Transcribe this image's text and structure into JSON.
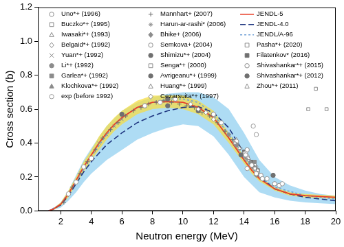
{
  "chart_data": {
    "type": "scatter",
    "x_label": "Neutron energy (MeV)",
    "y_label": "Cross section (b)",
    "xlim": [
      0.5,
      20
    ],
    "xticks": [
      2,
      4,
      6,
      8,
      10,
      12,
      14,
      16,
      18,
      20
    ],
    "ylim": [
      0,
      1.2
    ],
    "yticks": [
      {
        "value": 0,
        "label": "0.0"
      },
      0.2,
      0.4,
      0.6,
      0.8,
      {
        "value": 1,
        "label": "1.0"
      },
      1.2
    ],
    "grid": false,
    "legend": "top",
    "series": [
      {
        "name": "Uno*+ (1996)",
        "color": "#8c8c8c",
        "marker": "open-circle",
        "x": [
          14.1,
          14.5,
          14.8,
          15.2
        ],
        "values": [
          0.33,
          0.27,
          0.22,
          0.19
        ]
      },
      {
        "name": "Buczko*+ (1995)",
        "color": "#8c8c8c",
        "marker": "open-square",
        "x": [
          14.7
        ],
        "values": [
          0.25
        ]
      },
      {
        "name": "Iwasaki*+ (1993)",
        "color": "#8c8c8c",
        "marker": "open-triangle",
        "x": [
          13.4,
          13.7,
          14.3,
          14.9
        ],
        "values": [
          0.4,
          0.37,
          0.31,
          0.24
        ]
      },
      {
        "name": "Belgaid*+ (1992)",
        "color": "#8c8c8c",
        "marker": "open-diamond",
        "x": [
          14.5
        ],
        "values": [
          0.27
        ]
      },
      {
        "name": "Yuan*+ (1992)",
        "color": "#8c8c8c",
        "marker": "cross",
        "x": [
          4.5,
          5.0,
          5.5,
          6.0
        ],
        "values": [
          0.4,
          0.45,
          0.5,
          0.54
        ]
      },
      {
        "name": "Li*+ (1992)",
        "color": "#8c8c8c",
        "marker": "circle",
        "x": [
          13.5,
          14.6
        ],
        "values": [
          0.39,
          0.26
        ]
      },
      {
        "name": "Garlea*+ (1992)",
        "color": "#8c8c8c",
        "marker": "square",
        "x": [
          14.7
        ],
        "values": [
          0.29
        ]
      },
      {
        "name": "Klochkova*+ (1992)",
        "color": "#8c8c8c",
        "marker": "triangle",
        "x": [
          14.4
        ],
        "values": [
          0.29
        ]
      },
      {
        "name": "exp (before 1992)",
        "color": "#9a9a9a",
        "marker": "open-circle",
        "x": [
          2.5,
          3.0,
          3.5,
          4.0,
          7.5,
          8.5,
          9.5,
          12.5,
          13.5,
          14.1,
          14.2,
          14.6,
          14.8,
          15.5,
          16.5
        ],
        "values": [
          0.1,
          0.17,
          0.26,
          0.31,
          0.62,
          0.64,
          0.66,
          0.52,
          0.41,
          0.34,
          0.25,
          0.5,
          0.45,
          0.19,
          0.16
        ]
      },
      {
        "name": "Mannhart+ (2007)",
        "color": "#6e6e6e",
        "marker": "plus",
        "x": [
          2.2,
          2.75,
          3.25,
          3.75,
          4.25,
          4.75,
          5.25,
          5.75,
          6.25,
          6.75,
          7.25,
          7.75,
          8.25,
          8.75,
          9.25,
          9.75,
          10.25,
          10.75,
          11.25,
          11.75,
          12.25,
          12.75,
          13.25,
          13.75
        ],
        "values": [
          0.05,
          0.14,
          0.22,
          0.29,
          0.36,
          0.43,
          0.48,
          0.52,
          0.56,
          0.59,
          0.61,
          0.63,
          0.64,
          0.65,
          0.64,
          0.63,
          0.62,
          0.61,
          0.58,
          0.56,
          0.52,
          0.47,
          0.42,
          0.37
        ]
      },
      {
        "name": "Harun-ar-rashi* (2006)",
        "color": "#8c8c8c",
        "marker": "star",
        "x": [
          14.1,
          14.8
        ],
        "values": [
          0.31,
          0.26
        ]
      },
      {
        "name": "Bhike+ (2006)",
        "color": "#8c8c8c",
        "marker": "diamond",
        "x": [
          13.0,
          14.8
        ],
        "values": [
          0.45,
          0.21
        ]
      },
      {
        "name": "Semkova+ (2004)",
        "color": "#8c8c8c",
        "marker": "open-circle",
        "x": [
          14.2,
          15.1,
          16.0
        ],
        "values": [
          0.36,
          0.21,
          0.16
        ]
      },
      {
        "name": "Shimizu*+ (2004)",
        "color": "#707070",
        "marker": "circle",
        "x": [
          13.8,
          14.5
        ],
        "values": [
          0.33,
          0.28
        ]
      },
      {
        "name": "Senga*+ (2000)",
        "color": "#8c8c8c",
        "marker": "open-square",
        "x": [
          13.4,
          14.0,
          14.7
        ],
        "values": [
          0.41,
          0.34,
          0.27
        ]
      },
      {
        "name": "Avrigeanu*+ (1999)",
        "color": "#707070",
        "marker": "circle",
        "x": [
          6.0,
          7.5,
          9.0
        ],
        "values": [
          0.57,
          0.62,
          0.66
        ]
      },
      {
        "name": "Huang*+ (1999)",
        "color": "#8c8c8c",
        "marker": "open-triangle",
        "x": [
          14.3,
          14.9
        ],
        "values": [
          0.3,
          0.23
        ]
      },
      {
        "name": "Cezarsuita*+ (1997)",
        "color": "#8c8c8c",
        "marker": "open-diamond",
        "x": [
          10.5,
          11.0,
          11.5,
          12.0
        ],
        "values": [
          0.63,
          0.6,
          0.58,
          0.54
        ]
      },
      {
        "name": "JENDL-5",
        "type": "line",
        "color": "#e8402a",
        "line_style": "solid",
        "x": [
          1.2,
          1.5,
          2,
          2.5,
          3,
          3.5,
          4,
          4.5,
          5,
          5.5,
          6,
          7,
          8,
          9,
          10,
          11,
          12,
          13,
          14,
          14.5,
          15,
          16,
          17,
          18,
          19,
          20
        ],
        "values": [
          0,
          0.01,
          0.04,
          0.1,
          0.18,
          0.26,
          0.33,
          0.4,
          0.46,
          0.51,
          0.55,
          0.61,
          0.64,
          0.645,
          0.64,
          0.61,
          0.55,
          0.43,
          0.3,
          0.24,
          0.19,
          0.13,
          0.1,
          0.09,
          0.085,
          0.08
        ],
        "lower": [
          0,
          0.005,
          0.03,
          0.08,
          0.16,
          0.23,
          0.3,
          0.36,
          0.42,
          0.47,
          0.51,
          0.57,
          0.6,
          0.61,
          0.6,
          0.57,
          0.51,
          0.4,
          0.28,
          0.22,
          0.175,
          0.12,
          0.09,
          0.08,
          0.075,
          0.07
        ],
        "upper": [
          0,
          0.015,
          0.05,
          0.12,
          0.2,
          0.29,
          0.36,
          0.44,
          0.5,
          0.55,
          0.59,
          0.65,
          0.68,
          0.68,
          0.68,
          0.65,
          0.59,
          0.46,
          0.32,
          0.26,
          0.205,
          0.14,
          0.11,
          0.1,
          0.095,
          0.09
        ]
      },
      {
        "name": "JENDL-4.0",
        "type": "line",
        "color": "#1f3680",
        "line_style": "dashed",
        "x": [
          1.2,
          1.5,
          2,
          2.5,
          3,
          3.5,
          4,
          5,
          6,
          7,
          8,
          9,
          10,
          11,
          12,
          13,
          14,
          15,
          16,
          17,
          18,
          19,
          20
        ],
        "values": [
          0,
          0.01,
          0.035,
          0.09,
          0.16,
          0.23,
          0.29,
          0.39,
          0.46,
          0.52,
          0.56,
          0.59,
          0.61,
          0.615,
          0.58,
          0.49,
          0.34,
          0.2,
          0.13,
          0.1,
          0.08,
          0.07,
          0.06
        ],
        "lower": [
          0,
          0.005,
          0.02,
          0.06,
          0.11,
          0.17,
          0.22,
          0.3,
          0.36,
          0.42,
          0.46,
          0.49,
          0.51,
          0.5,
          0.44,
          0.33,
          0.2,
          0.11,
          0.08,
          0.06,
          0.05,
          0.045,
          0.04
        ],
        "upper": [
          0,
          0.015,
          0.05,
          0.12,
          0.21,
          0.3,
          0.37,
          0.5,
          0.59,
          0.64,
          0.67,
          0.69,
          0.7,
          0.7,
          0.67,
          0.6,
          0.46,
          0.3,
          0.2,
          0.15,
          0.12,
          0.1,
          0.09
        ]
      },
      {
        "name": "JENDL/A-96",
        "type": "line",
        "color": "#6f9fd6",
        "line_style": "short-dashed",
        "x": [
          1.2,
          2,
          3,
          4,
          5,
          6,
          7,
          8,
          9,
          10,
          11,
          12,
          13,
          14,
          15,
          16,
          18,
          20
        ],
        "values": [
          0,
          0.04,
          0.17,
          0.32,
          0.45,
          0.55,
          0.61,
          0.64,
          0.66,
          0.66,
          0.64,
          0.57,
          0.45,
          0.31,
          0.2,
          0.14,
          0.09,
          0.07
        ]
      },
      {
        "name": "Pasha*+ (2020)",
        "color": "#8c8c8c",
        "marker": "open-square",
        "x": [
          18.2,
          18.7,
          19.4
        ],
        "values": [
          0.6,
          0.72,
          0.6
        ]
      },
      {
        "name": "Filatenkov* (2016)",
        "color": "#707070",
        "marker": "square",
        "x": [
          13.5,
          14.0,
          14.5,
          14.9
        ],
        "values": [
          0.4,
          0.35,
          0.29,
          0.24
        ]
      },
      {
        "name": "Shivashankar*+ (2015)",
        "color": "#8c8c8c",
        "marker": "open-circle",
        "x": [
          12.0,
          14.2,
          16.3
        ],
        "values": [
          0.57,
          0.32,
          0.15
        ]
      },
      {
        "name": "Shivashankar*+ (2012)",
        "color": "#707070",
        "marker": "circle",
        "x": [
          9.0,
          11.0,
          15.9
        ],
        "values": [
          0.62,
          0.59,
          0.21
        ]
      },
      {
        "name": "Zhou*+ (2011)",
        "color": "#8c8c8c",
        "marker": "open-triangle",
        "x": [
          13.5,
          14.1,
          14.8
        ],
        "values": [
          0.42,
          0.33,
          0.25
        ]
      }
    ]
  }
}
